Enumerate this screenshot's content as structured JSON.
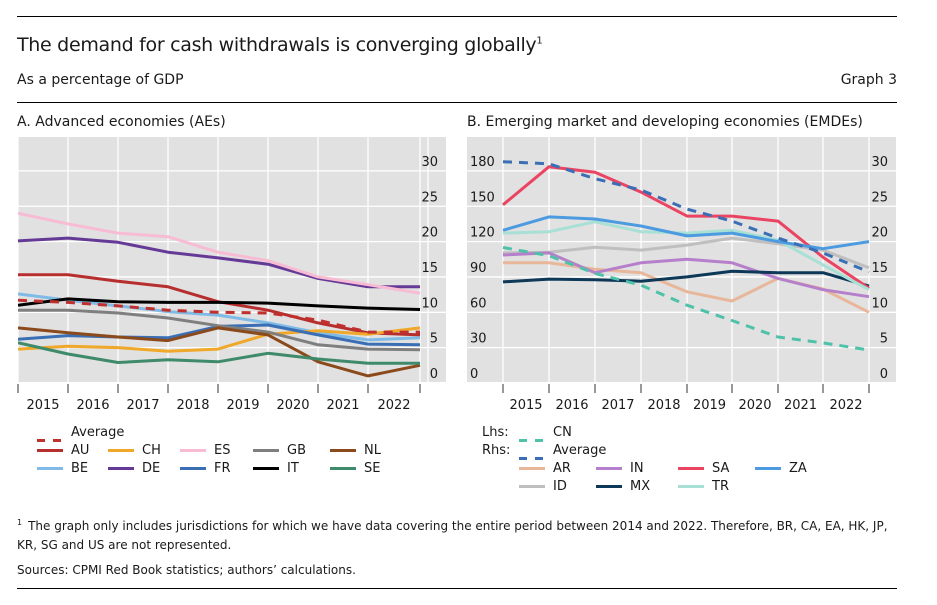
{
  "header": {
    "title": "The demand for cash withdrawals is converging globally",
    "title_footnote_marker": "1",
    "subtitle": "As a percentage of GDP",
    "graph_number": "Graph 3"
  },
  "footnote": {
    "marker": "1",
    "text": "The graph only includes jurisdictions for which we have data covering the entire period between 2014 and 2022. Therefore, BR, CA, EA, HK, JP, KR, SG and US are not represented."
  },
  "sources": "Sources: CPMI Red Book statistics; authors’ calculations.",
  "chart_data": [
    {
      "id": "panel-a",
      "type": "line",
      "title": "A. Advanced economies (AEs)",
      "x": [
        2014,
        2015,
        2016,
        2017,
        2018,
        2019,
        2020,
        2021,
        2022
      ],
      "x_tick_labels": [
        "2015",
        "2016",
        "2017",
        "2018",
        "2019",
        "2020",
        "2021",
        "2022"
      ],
      "y_axis_side": "right",
      "y_ticks": [
        0,
        5,
        10,
        15,
        20,
        25,
        30
      ],
      "ylim": [
        0,
        34.5
      ],
      "grid": true,
      "legend_placement": "bottom",
      "series": [
        {
          "name": "Average",
          "color": "#c0302e",
          "dashed": true,
          "values": [
            11.7,
            11.4,
            10.9,
            10.3,
            10.0,
            9.9,
            8.9,
            7.2,
            7.2
          ]
        },
        {
          "name": "AU",
          "color": "#b72e2e",
          "dashed": false,
          "values": [
            15.3,
            15.3,
            14.4,
            13.6,
            11.5,
            10.3,
            8.5,
            7.1,
            6.8
          ]
        },
        {
          "name": "BE",
          "color": "#7fbbe6",
          "dashed": false,
          "values": [
            12.6,
            11.7,
            10.9,
            10.1,
            9.6,
            8.5,
            7.1,
            6.1,
            6.4
          ]
        },
        {
          "name": "CH",
          "color": "#f0a82a",
          "dashed": false,
          "values": [
            4.8,
            5.2,
            5.0,
            4.5,
            4.8,
            6.9,
            7.4,
            6.9,
            7.8
          ]
        },
        {
          "name": "DE",
          "color": "#653a96",
          "dashed": false,
          "values": [
            20.1,
            20.5,
            19.9,
            18.5,
            17.7,
            16.8,
            14.8,
            13.6,
            13.6
          ]
        },
        {
          "name": "ES",
          "color": "#f7bcd3",
          "dashed": false,
          "values": [
            24.0,
            22.5,
            21.2,
            20.7,
            18.5,
            17.3,
            15.0,
            13.9,
            12.7
          ]
        },
        {
          "name": "FR",
          "color": "#3a6fb5",
          "dashed": false,
          "values": [
            6.2,
            6.7,
            6.5,
            6.4,
            8.0,
            8.2,
            6.8,
            5.5,
            5.4
          ]
        },
        {
          "name": "GB",
          "color": "#7f7f7f",
          "dashed": false,
          "values": [
            10.3,
            10.3,
            9.9,
            9.2,
            8.1,
            7.2,
            5.4,
            4.8,
            4.7
          ]
        },
        {
          "name": "IT",
          "color": "#000000",
          "dashed": false,
          "values": [
            11.0,
            11.9,
            11.5,
            11.4,
            11.4,
            11.3,
            10.9,
            10.6,
            10.4
          ]
        },
        {
          "name": "NL",
          "color": "#8b4a1c",
          "dashed": false,
          "values": [
            7.8,
            7.1,
            6.5,
            6.0,
            7.8,
            6.8,
            3.0,
            1.0,
            2.5
          ]
        },
        {
          "name": "SE",
          "color": "#3f8a6a",
          "dashed": false,
          "values": [
            5.7,
            4.1,
            2.9,
            3.3,
            3.0,
            4.2,
            3.4,
            2.8,
            2.8
          ]
        }
      ],
      "legend_order": [
        [
          "Average"
        ],
        [
          "AU",
          "CH",
          "ES",
          "GB",
          "NL"
        ],
        [
          "BE",
          "DE",
          "FR",
          "IT",
          "SE"
        ]
      ]
    },
    {
      "id": "panel-b",
      "type": "line",
      "title": "B. Emerging market and developing economies (EMDEs)",
      "x": [
        2014,
        2015,
        2016,
        2017,
        2018,
        2019,
        2020,
        2021,
        2022
      ],
      "x_tick_labels": [
        "2015",
        "2016",
        "2017",
        "2018",
        "2019",
        "2020",
        "2021",
        "2022"
      ],
      "left_axis": {
        "label": "Lhs",
        "ticks": [
          0,
          30,
          60,
          90,
          120,
          150,
          180
        ],
        "ylim": [
          0,
          207
        ]
      },
      "right_axis": {
        "label": "Rhs",
        "ticks": [
          0,
          5,
          10,
          15,
          20,
          25,
          30
        ],
        "ylim": [
          0,
          34.5
        ]
      },
      "grid": true,
      "legend_placement": "bottom",
      "series": [
        {
          "name": "CN",
          "axis": "left",
          "color": "#4fc1a9",
          "dashed": true,
          "values": [
            115,
            108,
            93,
            83,
            66,
            53,
            39,
            34,
            28
          ]
        },
        {
          "name": "Average",
          "axis": "right",
          "color": "#3a6fb5",
          "dashed": true,
          "values": [
            31.3,
            31.0,
            28.9,
            27.3,
            24.6,
            22.9,
            20.5,
            18.4,
            15.7
          ]
        },
        {
          "name": "AR",
          "axis": "right",
          "color": "#e8b699",
          "dashed": false,
          "values": [
            17.0,
            17.0,
            16.1,
            15.6,
            12.9,
            11.6,
            14.8,
            13.3,
            10.0
          ]
        },
        {
          "name": "ID",
          "axis": "right",
          "color": "#bfbfbf",
          "dashed": false,
          "values": [
            18.4,
            18.5,
            19.2,
            18.8,
            19.5,
            20.5,
            19.7,
            18.8,
            16.3
          ]
        },
        {
          "name": "IN",
          "axis": "right",
          "color": "#b57fcb",
          "dashed": false,
          "values": [
            18.1,
            18.4,
            15.6,
            17.0,
            17.5,
            17.0,
            14.8,
            13.2,
            12.2
          ]
        },
        {
          "name": "MX",
          "axis": "right",
          "color": "#0d3858",
          "dashed": false,
          "values": [
            14.3,
            14.7,
            14.6,
            14.4,
            15.0,
            15.8,
            15.6,
            15.6,
            13.7
          ]
        },
        {
          "name": "SA",
          "axis": "right",
          "color": "#ea4462",
          "dashed": false,
          "values": [
            25.2,
            30.6,
            29.8,
            27.0,
            23.6,
            23.6,
            22.9,
            17.8,
            13.4
          ]
        },
        {
          "name": "TR",
          "axis": "right",
          "color": "#a8e0d5",
          "dashed": false,
          "values": [
            21.2,
            21.4,
            22.8,
            21.4,
            21.2,
            21.6,
            20.2,
            16.7,
            13.2
          ]
        },
        {
          "name": "ZA",
          "axis": "right",
          "color": "#4c9be0",
          "dashed": false,
          "values": [
            21.6,
            23.5,
            23.2,
            22.2,
            20.8,
            21.2,
            20.0,
            19.0,
            20.0
          ]
        }
      ],
      "legend_prefixes": {
        "lhs": "Lhs:",
        "rhs": "Rhs:"
      },
      "legend_order": [
        [
          "CN"
        ],
        [
          "Average"
        ],
        [
          "AR",
          "IN",
          "SA",
          "ZA"
        ],
        [
          "ID",
          "MX",
          "TR"
        ]
      ]
    }
  ]
}
